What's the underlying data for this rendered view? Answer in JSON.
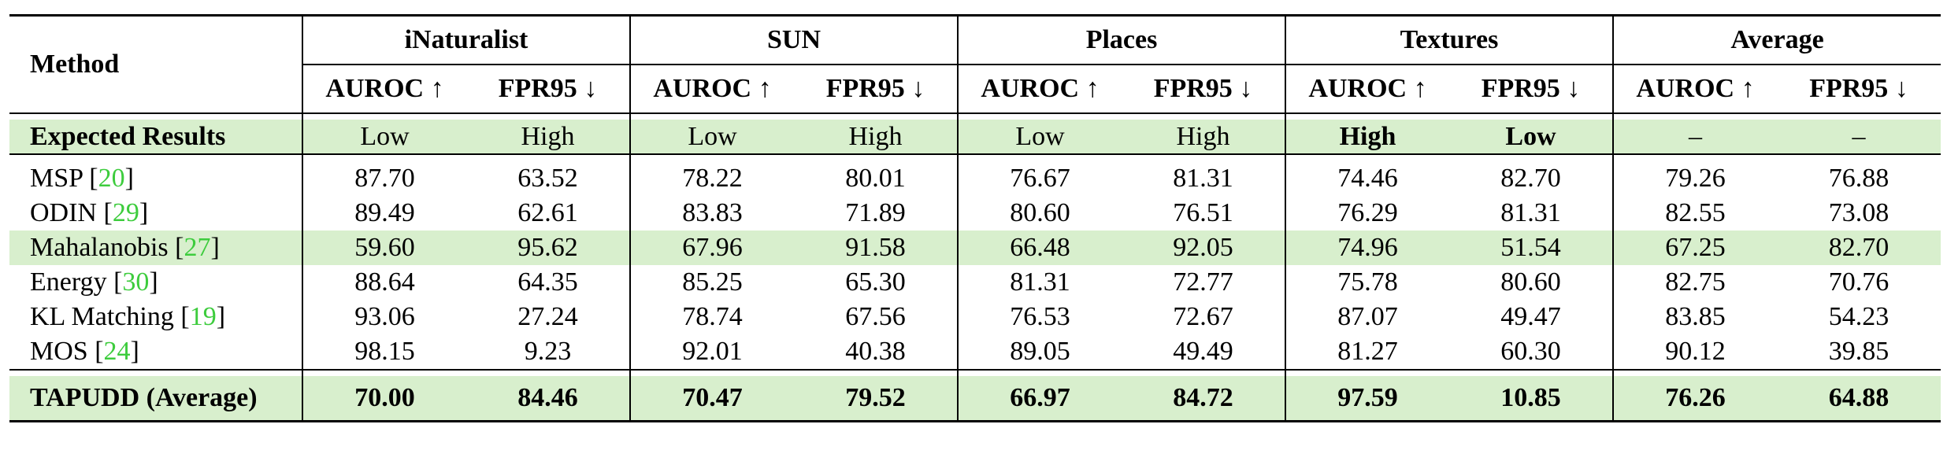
{
  "header": {
    "method_label": "Method",
    "datasets": [
      "iNaturalist",
      "SUN",
      "Places",
      "Textures",
      "Average"
    ],
    "metric_auroc": "AUROC ↑",
    "metric_fpr": "FPR95 ↓"
  },
  "expected": {
    "label": "Expected Results",
    "values": [
      "Low",
      "High",
      "Low",
      "High",
      "Low",
      "High",
      "High",
      "Low",
      "–",
      "–"
    ]
  },
  "rows": [
    {
      "name": "MSP",
      "cite": "20",
      "values": [
        "87.70",
        "63.52",
        "78.22",
        "80.01",
        "76.67",
        "81.31",
        "74.46",
        "82.70",
        "79.26",
        "76.88"
      ]
    },
    {
      "name": "ODIN",
      "cite": "29",
      "values": [
        "89.49",
        "62.61",
        "83.83",
        "71.89",
        "80.60",
        "76.51",
        "76.29",
        "81.31",
        "82.55",
        "73.08"
      ]
    },
    {
      "name": "Mahalanobis",
      "cite": "27",
      "values": [
        "59.60",
        "95.62",
        "67.96",
        "91.58",
        "66.48",
        "92.05",
        "74.96",
        "51.54",
        "67.25",
        "82.70"
      ]
    },
    {
      "name": "Energy",
      "cite": "30",
      "values": [
        "88.64",
        "64.35",
        "85.25",
        "65.30",
        "81.31",
        "72.77",
        "75.78",
        "80.60",
        "82.75",
        "70.76"
      ]
    },
    {
      "name": "KL Matching",
      "cite": "19",
      "values": [
        "93.06",
        "27.24",
        "78.74",
        "67.56",
        "76.53",
        "72.67",
        "87.07",
        "49.47",
        "83.85",
        "54.23"
      ]
    },
    {
      "name": "MOS",
      "cite": "24",
      "values": [
        "98.15",
        "9.23",
        "92.01",
        "40.38",
        "89.05",
        "49.49",
        "81.27",
        "60.30",
        "90.12",
        "39.85"
      ]
    }
  ],
  "final": {
    "label": "TAPUDD (Average)",
    "values": [
      "70.00",
      "84.46",
      "70.47",
      "79.52",
      "66.97",
      "84.72",
      "97.59",
      "10.85",
      "76.26",
      "64.88"
    ]
  },
  "colors": {
    "highlight": "#d8efcd",
    "citation": "#3dcc3d"
  }
}
